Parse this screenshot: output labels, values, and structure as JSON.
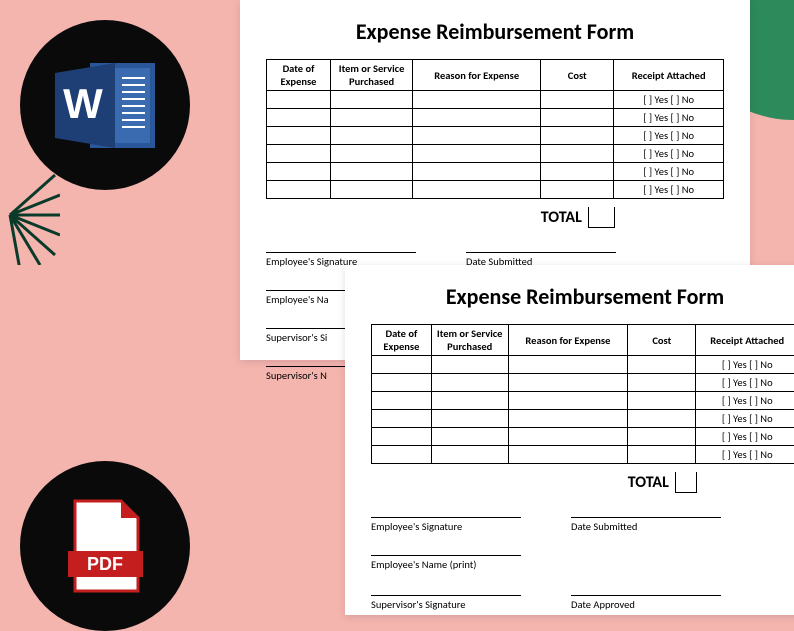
{
  "form": {
    "title": "Expense Reimbursement Form",
    "columns": [
      "Date of Expense",
      "Item or Service Purchased",
      "Reason for Expense",
      "Cost",
      "Receipt Attached"
    ],
    "receipt_cell": "[  ] Yes   [  ] No",
    "row_count": 6,
    "total_label": "TOTAL",
    "signatures": {
      "emp_sig": "Employee's Signature",
      "date_sub": "Date Submitted",
      "emp_name": "Employee's Name (print)",
      "sup_sig": "Supervisor's Signature",
      "date_app": "Date Approved",
      "emp_name_trunc": "Employee's Na",
      "sup_sig_trunc": "Supervisor's Si",
      "sup_name_trunc": "Supervisor's N"
    }
  },
  "badges": {
    "word_letter": "W",
    "pdf_label": "PDF"
  },
  "colors": {
    "bg": "#f5b5af",
    "green": "#2d8a5a",
    "dark_green": "#0a3a2a",
    "black": "#0a0a0a",
    "word_blue": "#2a569a",
    "word_blue_dark": "#1e3f75",
    "pdf_red": "#c41e1e",
    "white": "#ffffff"
  }
}
